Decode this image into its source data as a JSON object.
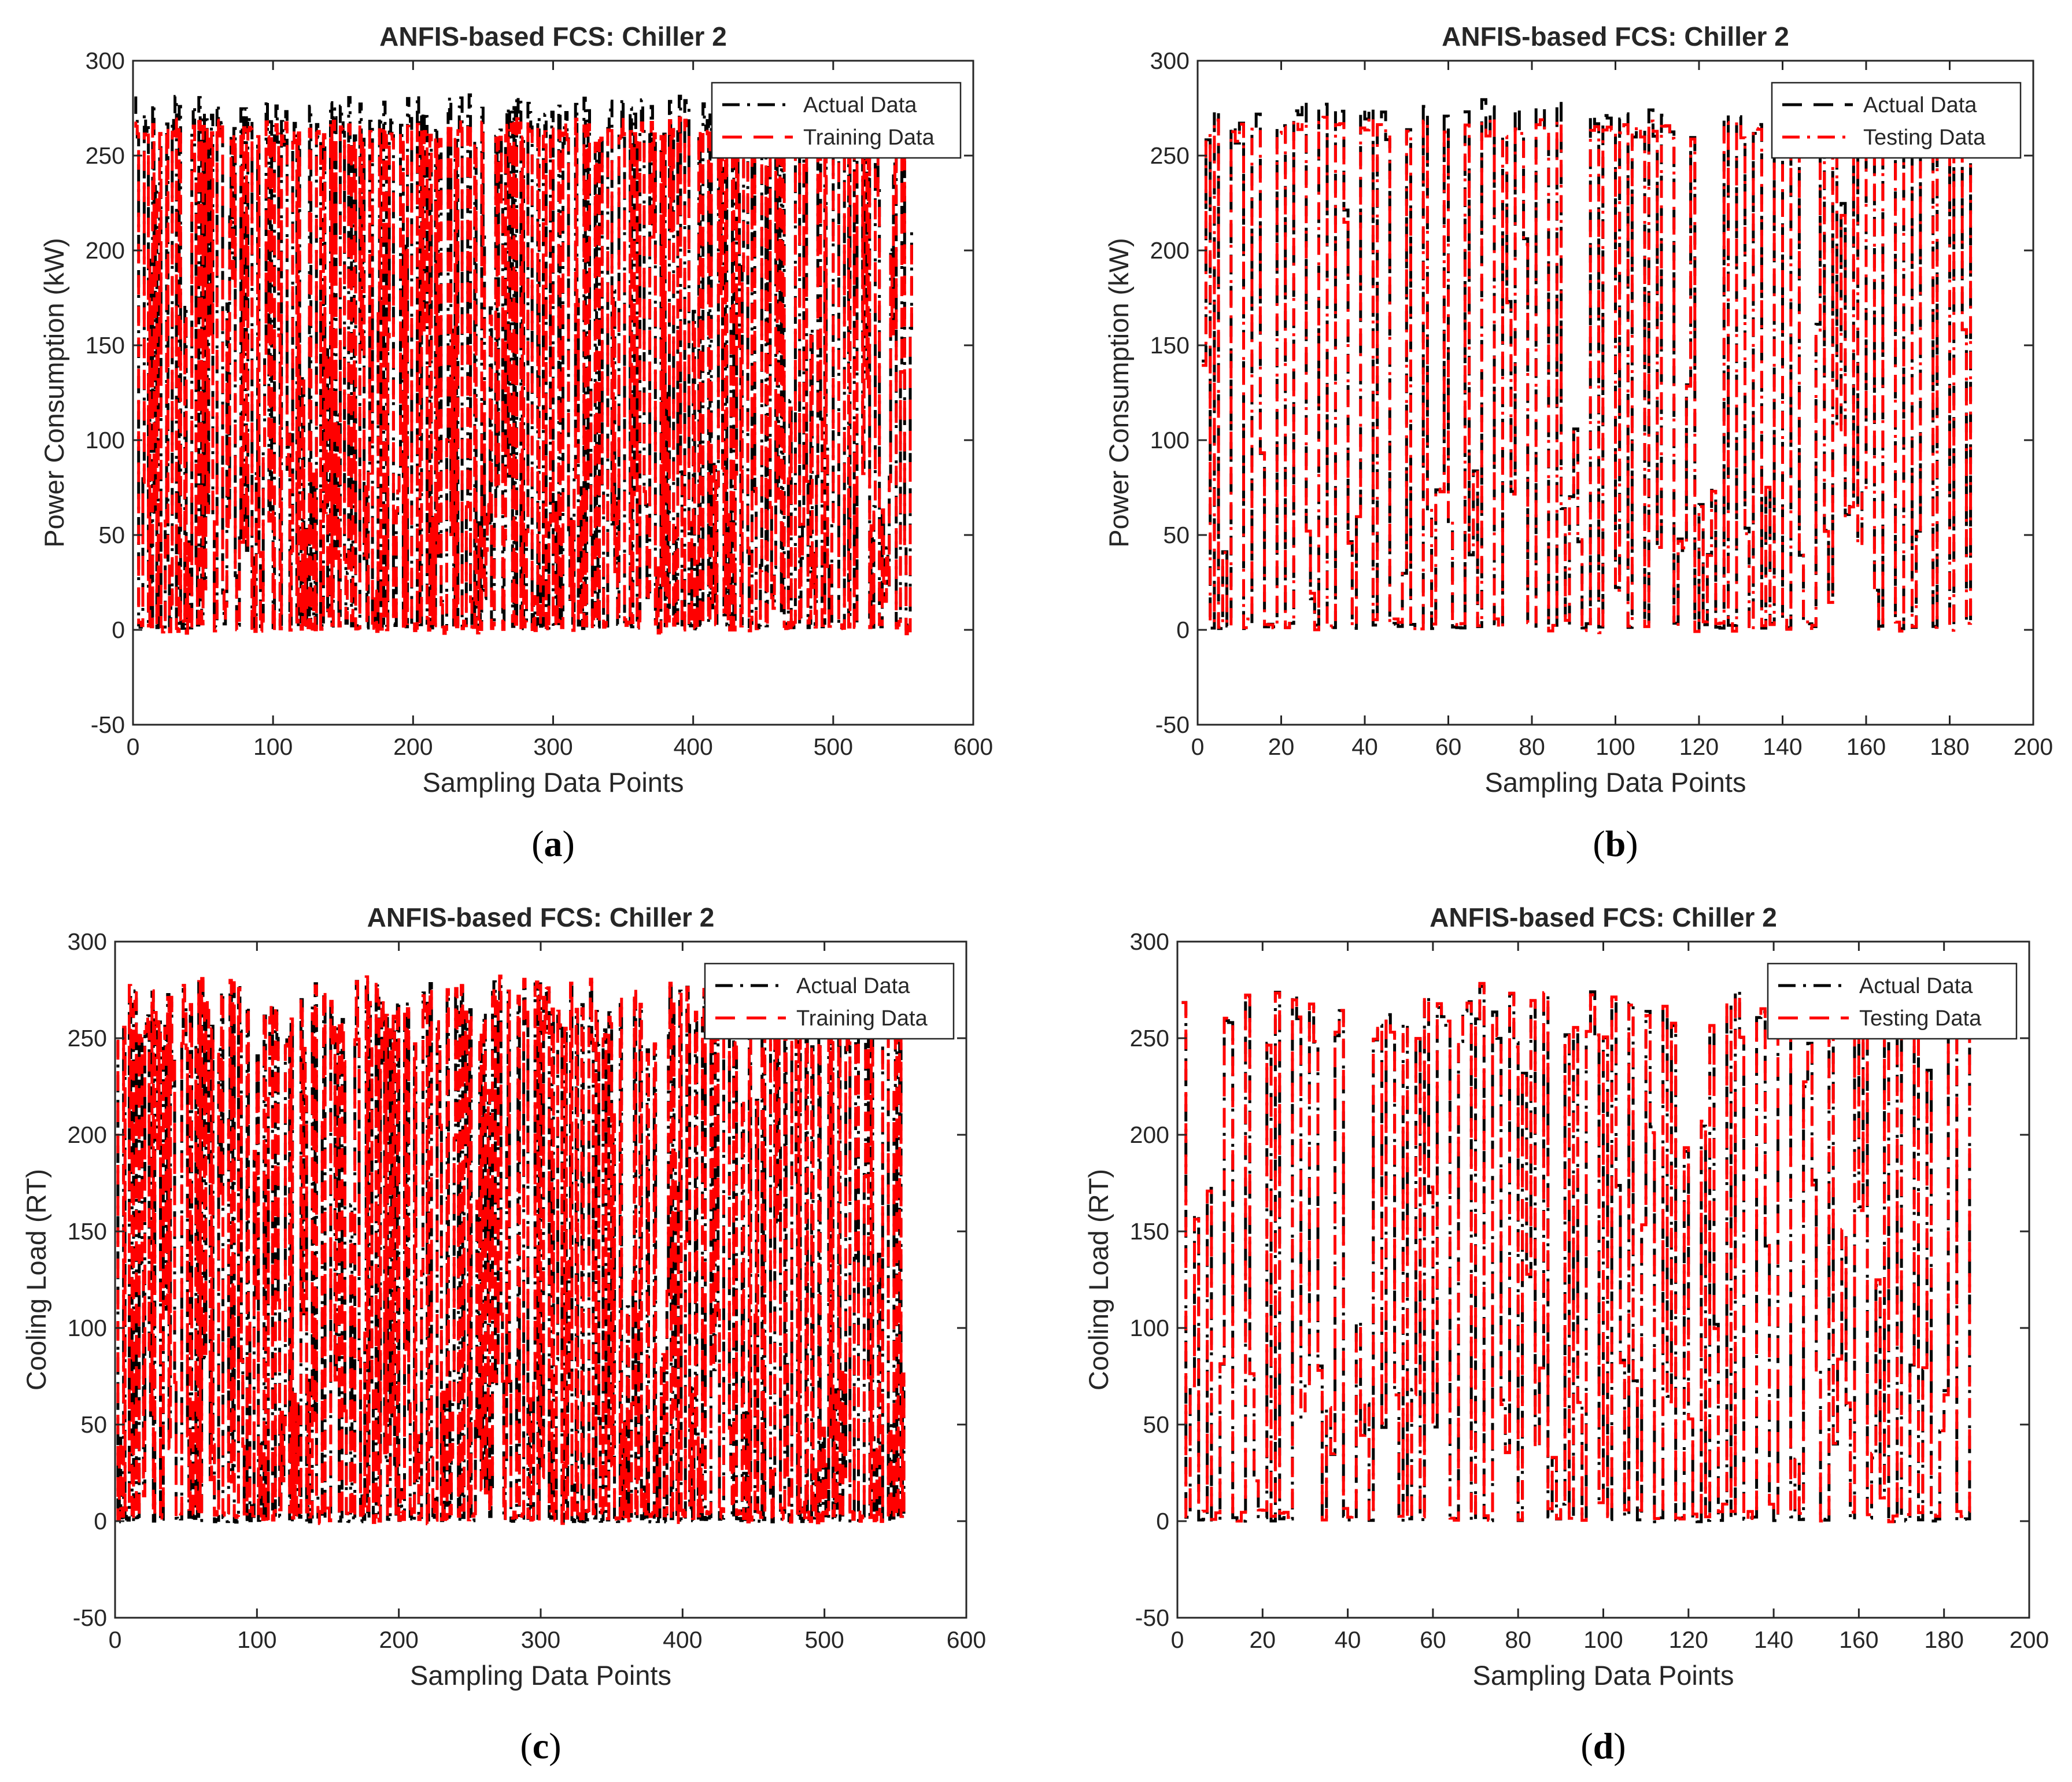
{
  "chart_data": [
    {
      "type": "line",
      "panel": "a",
      "caption_open": "(",
      "caption_letter": "a",
      "caption_close": ")",
      "title": "ANFIS-based FCS: Chiller 2",
      "xlabel": "Sampling Data Points",
      "ylabel": "Power Consumption (kW)",
      "xlim": [
        0,
        600
      ],
      "ylim": [
        -50,
        300
      ],
      "xticks": [
        0,
        100,
        200,
        300,
        400,
        500,
        600
      ],
      "yticks": [
        -50,
        0,
        50,
        100,
        150,
        200,
        250,
        300
      ],
      "n_points": 556,
      "legend_position": "top-right",
      "series": [
        {
          "name": "Actual Data",
          "color": "#000000",
          "linestyle": "dash-dot",
          "high_level": 268,
          "high_jitter": 14,
          "low_level": 2
        },
        {
          "name": "Training Data",
          "color": "#ff0000",
          "linestyle": "dashed",
          "high_level": 263,
          "high_jitter": 5,
          "low_level": 2
        }
      ]
    },
    {
      "type": "line",
      "panel": "b",
      "caption_open": "(",
      "caption_letter": "b",
      "caption_close": ")",
      "title": "ANFIS-based FCS: Chiller 2",
      "xlabel": "Sampling Data Points",
      "ylabel": "Power Consumption (kW)",
      "xlim": [
        0,
        200
      ],
      "ylim": [
        -50,
        300
      ],
      "xticks": [
        0,
        20,
        40,
        60,
        80,
        100,
        120,
        140,
        160,
        180,
        200
      ],
      "yticks": [
        -50,
        0,
        50,
        100,
        150,
        200,
        250,
        300
      ],
      "n_points": 186,
      "legend_position": "top-right",
      "series": [
        {
          "name": "Actual Data",
          "color": "#000000",
          "linestyle": "dashed",
          "high_level": 268,
          "high_jitter": 12,
          "low_level": 2
        },
        {
          "name": "Testing Data",
          "color": "#ff0000",
          "linestyle": "dash-dot",
          "high_level": 264,
          "high_jitter": 5,
          "low_level": 2
        }
      ]
    },
    {
      "type": "line",
      "panel": "c",
      "caption_open": "(",
      "caption_letter": "c",
      "caption_close": ")",
      "title": "ANFIS-based FCS: Chiller 2",
      "xlabel": "Sampling Data Points",
      "ylabel": "Cooling Load (RT)",
      "xlim": [
        0,
        600
      ],
      "ylim": [
        -50,
        300
      ],
      "xticks": [
        0,
        100,
        200,
        300,
        400,
        500,
        600
      ],
      "yticks": [
        -50,
        0,
        50,
        100,
        150,
        200,
        250,
        300
      ],
      "n_points": 556,
      "legend_position": "top-right",
      "series": [
        {
          "name": "Actual Data",
          "color": "#000000",
          "linestyle": "dash-dot",
          "high_level": 262,
          "high_jitter": 18,
          "low_level": 1
        },
        {
          "name": "Training Data",
          "color": "#ff0000",
          "linestyle": "dashed",
          "high_level": 262,
          "high_jitter": 18,
          "low_level": 3
        }
      ]
    },
    {
      "type": "line",
      "panel": "d",
      "caption_open": "(",
      "caption_letter": "d",
      "caption_close": ")",
      "title": "ANFIS-based FCS: Chiller 2",
      "xlabel": "Sampling Data Points",
      "ylabel": "Cooling Load (RT)",
      "xlim": [
        0,
        200
      ],
      "ylim": [
        -50,
        300
      ],
      "xticks": [
        0,
        20,
        40,
        60,
        80,
        100,
        120,
        140,
        160,
        180,
        200
      ],
      "yticks": [
        -50,
        0,
        50,
        100,
        150,
        200,
        250,
        300
      ],
      "n_points": 186,
      "legend_position": "top-right",
      "series": [
        {
          "name": "Actual Data",
          "color": "#000000",
          "linestyle": "dash-dot",
          "high_level": 262,
          "high_jitter": 15,
          "low_level": 1
        },
        {
          "name": "Testing Data",
          "color": "#ff0000",
          "linestyle": "dashed",
          "high_level": 262,
          "high_jitter": 15,
          "low_level": 3
        }
      ]
    }
  ]
}
